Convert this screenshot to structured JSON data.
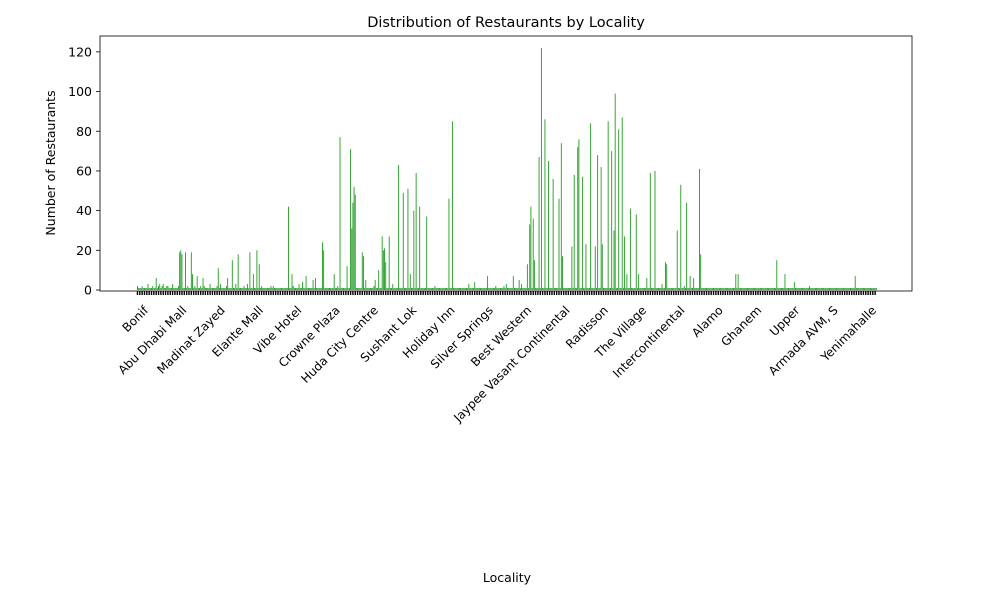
{
  "chart_data": {
    "type": "bar",
    "title": "Distribution of Restaurants by Locality",
    "xlabel": "Locality",
    "ylabel": "Number of Restaurants",
    "ylim": [
      0,
      128
    ],
    "yticks": [
      0,
      20,
      40,
      60,
      80,
      100,
      120
    ],
    "grid": false,
    "legend": "none",
    "bar_color": "#2ca02c",
    "visible_tick_labels": [
      "Bonif",
      "Abu Dhabi Mall",
      "Madinat Zayed",
      "Elante Mall",
      "Vibe Hotel",
      "Crowne Plaza",
      "Huda City Centre",
      "Sushant Lok",
      "Holiday Inn",
      "Silver Springs",
      "Best Western",
      "Jaypee Vasant Continental",
      "Radisson",
      "The Village",
      "Intercontinental",
      "Alamo",
      "Ghanem",
      "Upper",
      "Armada AVM, S",
      "Yenimahalle"
    ],
    "series": [
      {
        "values": [
          2,
          1,
          1,
          1,
          2,
          1,
          1,
          1,
          1,
          3,
          1,
          1,
          1,
          2,
          1,
          1,
          6,
          1,
          2,
          3,
          1,
          2,
          3,
          1,
          1,
          2,
          2,
          1,
          1,
          1,
          3,
          1,
          1,
          1,
          1,
          2,
          19,
          20,
          18,
          1,
          1,
          19,
          1,
          2,
          1,
          1,
          19,
          8,
          1,
          2,
          1,
          7,
          1,
          1,
          2,
          1,
          6,
          2,
          1,
          1,
          1,
          1,
          3,
          1,
          1,
          1,
          1,
          1,
          2,
          11,
          1,
          3,
          1,
          1,
          1,
          1,
          2,
          6,
          1,
          1,
          1,
          15,
          1,
          1,
          3,
          1,
          18,
          1,
          1,
          1,
          1,
          2,
          1,
          1,
          3,
          1,
          19,
          1,
          1,
          8,
          1,
          1,
          20,
          1,
          13,
          1,
          2,
          1,
          1,
          1,
          1,
          1,
          1,
          1,
          2,
          1,
          2,
          1,
          1,
          1,
          1,
          1,
          1,
          1,
          1,
          1,
          1,
          1,
          1,
          42,
          1,
          1,
          8,
          2,
          1,
          1,
          1,
          1,
          3,
          1,
          1,
          4,
          1,
          1,
          7,
          1,
          1,
          1,
          1,
          1,
          5,
          1,
          6,
          1,
          1,
          1,
          1,
          1,
          24,
          20,
          1,
          1,
          1,
          1,
          1,
          1,
          1,
          1,
          8,
          1,
          1,
          2,
          1,
          77,
          1,
          1,
          1,
          1,
          1,
          12,
          1,
          1,
          71,
          31,
          44,
          52,
          48,
          1,
          1,
          1,
          1,
          1,
          19,
          17,
          1,
          5,
          1,
          1,
          1,
          1,
          1,
          1,
          2,
          5,
          1,
          1,
          10,
          1,
          1,
          27,
          20,
          21,
          14,
          1,
          1,
          27,
          1,
          1,
          3,
          1,
          1,
          1,
          1,
          63,
          1,
          1,
          1,
          49,
          1,
          1,
          1,
          51,
          1,
          8,
          1,
          1,
          40,
          1,
          59,
          1,
          1,
          42,
          1,
          1,
          1,
          1,
          1,
          37,
          1,
          1,
          1,
          1,
          1,
          1,
          2,
          1,
          1,
          1,
          1,
          1,
          1,
          1,
          1,
          1,
          1,
          1,
          46,
          1,
          1,
          85,
          1,
          1,
          1,
          1,
          1,
          1,
          1,
          1,
          1,
          1,
          1,
          1,
          1,
          3,
          1,
          1,
          1,
          1,
          4,
          1,
          1,
          1,
          1,
          1,
          1,
          1,
          1,
          1,
          1,
          7,
          1,
          1,
          1,
          1,
          1,
          1,
          2,
          1,
          1,
          1,
          1,
          1,
          1,
          2,
          1,
          3,
          1,
          1,
          1,
          1,
          1,
          7,
          1,
          1,
          1,
          1,
          5,
          1,
          3,
          1,
          1,
          1,
          1,
          13,
          1,
          33,
          42,
          1,
          36,
          15,
          1,
          1,
          1,
          67,
          1,
          122,
          1,
          1,
          86,
          1,
          1,
          65,
          1,
          1,
          1,
          56,
          1,
          1,
          1,
          1,
          46,
          1,
          74,
          17,
          1,
          1,
          1,
          1,
          1,
          1,
          1,
          22,
          1,
          58,
          1,
          1,
          72,
          76,
          1,
          1,
          57,
          1,
          1,
          23,
          1,
          1,
          1,
          84,
          1,
          1,
          1,
          22,
          1,
          68,
          1,
          1,
          62,
          23,
          1,
          1,
          1,
          1,
          85,
          1,
          1,
          70,
          1,
          30,
          99,
          1,
          1,
          81,
          1,
          1,
          87,
          1,
          27,
          1,
          8,
          1,
          1,
          41,
          1,
          1,
          1,
          1,
          38,
          1,
          8,
          1,
          1,
          1,
          1,
          1,
          1,
          6,
          1,
          1,
          59,
          1,
          1,
          1,
          60,
          1,
          1,
          1,
          1,
          1,
          3,
          1,
          1,
          14,
          13,
          1,
          1,
          1,
          1,
          1,
          1,
          1,
          1,
          30,
          1,
          1,
          53,
          1,
          1,
          2,
          1,
          44,
          1,
          1,
          7,
          1,
          1,
          6,
          1,
          1,
          1,
          1,
          61,
          18,
          1,
          1,
          1,
          1,
          1,
          1,
          1,
          1,
          1,
          1,
          1,
          1,
          1,
          1,
          1,
          1,
          1,
          1,
          1,
          1,
          1,
          1,
          1,
          1,
          1,
          1,
          1,
          1,
          1,
          8,
          1,
          8,
          1,
          1,
          1,
          1,
          1,
          1,
          1,
          1,
          1,
          1,
          1,
          1,
          1,
          1,
          1,
          1,
          1,
          1,
          1,
          1,
          1,
          1,
          1,
          1,
          1,
          1,
          1,
          1,
          1,
          1,
          1,
          1,
          15,
          1,
          1,
          1,
          1,
          1,
          1,
          8,
          1,
          1,
          1,
          1,
          1,
          1,
          1,
          4,
          1,
          1,
          1,
          1,
          1,
          1,
          1,
          1,
          1,
          1,
          1,
          1,
          2,
          1,
          1,
          1,
          1,
          1,
          1,
          1,
          1,
          1,
          1,
          1,
          1,
          1,
          1,
          1,
          1,
          1,
          1,
          1,
          1,
          1,
          1,
          1,
          1,
          1,
          1,
          1,
          1,
          1,
          1,
          1,
          1,
          1,
          1,
          1,
          1,
          1,
          1,
          7,
          1,
          1,
          1,
          1,
          1,
          1,
          1,
          1,
          1,
          1,
          1,
          1,
          1,
          1,
          1,
          1,
          1,
          1
        ]
      }
    ]
  }
}
